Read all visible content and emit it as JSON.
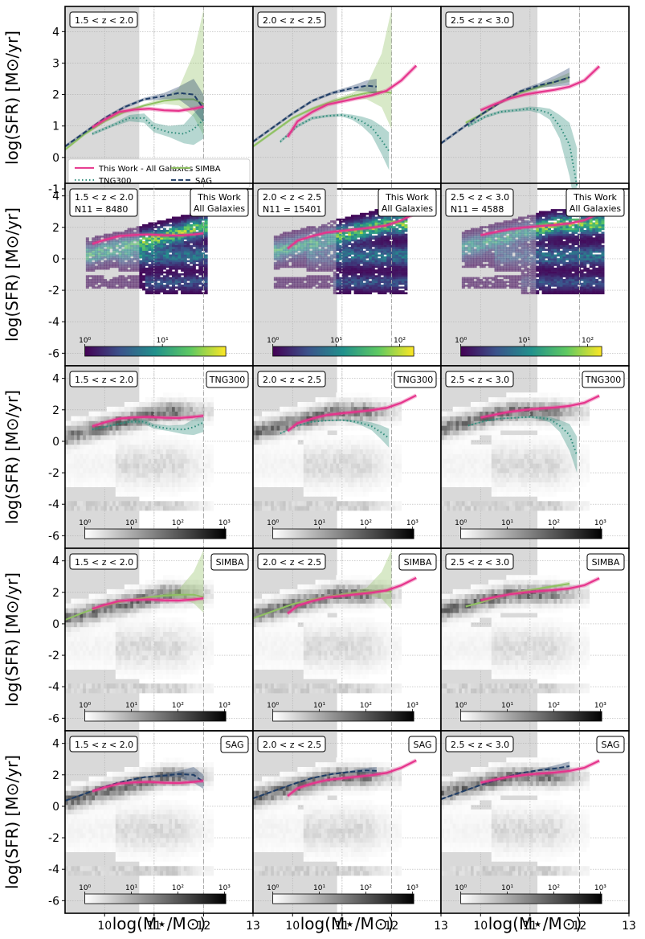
{
  "figure": {
    "ylabel": "log(SFR) [M⊙/yr]",
    "xlabel": "log(M⋆/M⊙)",
    "xticks": [
      10,
      11,
      12,
      13
    ],
    "yticks": [
      -6,
      -4,
      -2,
      0,
      2,
      4
    ],
    "y_row0_ticks": [
      -1,
      0,
      1,
      2,
      3,
      4
    ],
    "columns": [
      "1.5 < z < 2.0",
      "2.0 < z < 2.5",
      "2.5 < z < 3.0"
    ],
    "mass_limits": [
      10.7,
      10.9,
      11.15
    ],
    "dotted_ref": 11.0,
    "dashed_ref": 12.0,
    "row_tags": [
      "",
      "This Work\nAll Galaxies",
      "TNG300",
      "SIMBA",
      "SAG"
    ],
    "obs_counts": [
      "N11 = 8480",
      "N11 = 15401",
      "N11 = 4588"
    ],
    "obs_colorbar_ticks": [
      [
        "10⁰",
        "10¹"
      ],
      [
        "10⁰",
        "10¹",
        "10²"
      ],
      [
        "10⁰",
        "10¹",
        "10²"
      ]
    ],
    "sim_colorbar_ticks": [
      "10⁰",
      "10¹",
      "10²",
      "10³"
    ],
    "legend": [
      {
        "label": "This Work - All Galaxies",
        "color": "#e6348c",
        "style": "solid"
      },
      {
        "label": "SIMBA",
        "color": "#8fc162",
        "style": "solid"
      },
      {
        "label": "TNG300",
        "color": "#2e8b7a",
        "style": "dotted"
      },
      {
        "label": "SAG",
        "color": "#1f3d66",
        "style": "dashed"
      }
    ],
    "colors": {
      "this_work": "#e6348c",
      "tng": "#2e8b7a",
      "simba": "#8fc162",
      "sag": "#1f3d66",
      "shade": "#d9d9d9"
    }
  },
  "chart_data": {
    "type": "line",
    "xlim": [
      9.2,
      13.0
    ],
    "ylim_top": [
      -1,
      4.8
    ],
    "ylim": [
      -6.8,
      4.8
    ],
    "panels": [
      {
        "title": "1.5 < z < 2.0",
        "this_work": {
          "x": [
            9.75,
            10.0,
            10.3,
            10.6,
            10.9,
            11.2,
            11.5,
            11.8,
            12.0
          ],
          "y": [
            0.95,
            1.2,
            1.45,
            1.52,
            1.55,
            1.5,
            1.48,
            1.55,
            1.62
          ]
        },
        "tng": {
          "x": [
            9.75,
            10.2,
            10.5,
            10.8,
            11.0,
            11.3,
            11.6,
            11.8,
            12.0
          ],
          "y": [
            0.75,
            1.05,
            1.25,
            1.25,
            0.95,
            0.8,
            0.75,
            0.9,
            1.2
          ],
          "lo": [
            0.7,
            1.0,
            1.15,
            1.1,
            0.8,
            0.65,
            0.45,
            0.4,
            0.6
          ],
          "hi": [
            0.8,
            1.1,
            1.35,
            1.4,
            1.1,
            1.0,
            1.05,
            1.4,
            1.7
          ]
        },
        "simba": {
          "x": [
            9.2,
            9.6,
            10.0,
            10.4,
            10.8,
            11.2,
            11.5,
            11.8,
            12.0
          ],
          "y": [
            0.25,
            0.75,
            1.15,
            1.45,
            1.65,
            1.8,
            1.85,
            1.85,
            1.7
          ],
          "lo": [
            0.2,
            0.7,
            1.1,
            1.4,
            1.6,
            1.7,
            1.65,
            1.3,
            0.7
          ],
          "hi": [
            0.3,
            0.8,
            1.2,
            1.5,
            1.7,
            1.9,
            2.2,
            3.3,
            4.7
          ]
        },
        "sag": {
          "x": [
            9.2,
            9.6,
            10.0,
            10.4,
            10.8,
            11.2,
            11.5,
            11.8,
            12.0
          ],
          "y": [
            0.35,
            0.8,
            1.25,
            1.6,
            1.85,
            1.95,
            2.05,
            2.0,
            1.55
          ],
          "lo": [
            0.3,
            0.75,
            1.2,
            1.55,
            1.8,
            1.85,
            1.85,
            1.5,
            1.1
          ],
          "hi": [
            0.4,
            0.85,
            1.3,
            1.65,
            1.9,
            2.05,
            2.25,
            2.5,
            2.0
          ]
        }
      },
      {
        "title": "2.0 < z < 2.5",
        "this_work": {
          "x": [
            9.9,
            10.1,
            10.4,
            10.7,
            11.0,
            11.3,
            11.6,
            11.9,
            12.2,
            12.5
          ],
          "y": [
            0.65,
            1.15,
            1.45,
            1.68,
            1.78,
            1.88,
            1.98,
            2.12,
            2.45,
            2.92
          ]
        },
        "tng": {
          "x": [
            9.75,
            10.1,
            10.4,
            10.7,
            11.0,
            11.2,
            11.4,
            11.6,
            11.8,
            11.95
          ],
          "y": [
            0.5,
            1.0,
            1.25,
            1.32,
            1.35,
            1.28,
            1.15,
            0.95,
            0.55,
            0.2
          ],
          "lo": [
            0.45,
            0.95,
            1.2,
            1.28,
            1.3,
            1.2,
            1.0,
            0.7,
            0.1,
            -0.4
          ],
          "hi": [
            0.55,
            1.05,
            1.3,
            1.36,
            1.4,
            1.36,
            1.3,
            1.2,
            1.0,
            0.8
          ]
        },
        "simba": {
          "x": [
            9.2,
            9.6,
            10.0,
            10.4,
            10.8,
            11.2,
            11.5,
            11.8,
            12.0
          ],
          "y": [
            0.35,
            0.8,
            1.25,
            1.55,
            1.78,
            1.95,
            2.05,
            2.1,
            2.05
          ],
          "lo": [
            0.3,
            0.75,
            1.2,
            1.5,
            1.72,
            1.85,
            1.85,
            1.6,
            0.9
          ],
          "hi": [
            0.4,
            0.85,
            1.3,
            1.6,
            1.84,
            2.05,
            2.3,
            3.3,
            4.7
          ]
        },
        "sag": {
          "x": [
            9.2,
            9.6,
            10.0,
            10.4,
            10.8,
            11.2,
            11.5,
            11.7
          ],
          "y": [
            0.5,
            0.95,
            1.4,
            1.8,
            2.05,
            2.2,
            2.28,
            2.25
          ],
          "lo": [
            0.45,
            0.9,
            1.35,
            1.75,
            2.0,
            2.12,
            2.1,
            2.0
          ],
          "hi": [
            0.55,
            1.0,
            1.45,
            1.85,
            2.1,
            2.28,
            2.45,
            2.5
          ]
        }
      },
      {
        "title": "2.5 < z < 3.0",
        "this_work": {
          "x": [
            10.0,
            10.3,
            10.6,
            10.9,
            11.2,
            11.5,
            11.8,
            12.1,
            12.4
          ],
          "y": [
            1.5,
            1.7,
            1.88,
            2.0,
            2.08,
            2.15,
            2.25,
            2.45,
            2.9
          ]
        },
        "tng": {
          "x": [
            9.75,
            10.1,
            10.4,
            10.7,
            11.0,
            11.2,
            11.4,
            11.6,
            11.8,
            11.95
          ],
          "y": [
            1.0,
            1.3,
            1.45,
            1.5,
            1.55,
            1.5,
            1.4,
            1.0,
            0.4,
            -0.9
          ],
          "lo": [
            0.95,
            1.25,
            1.4,
            1.45,
            1.48,
            1.4,
            1.2,
            0.6,
            -0.6,
            -2.0
          ],
          "hi": [
            1.05,
            1.35,
            1.5,
            1.55,
            1.62,
            1.6,
            1.55,
            1.35,
            1.1,
            0.3
          ]
        },
        "simba": {
          "x": [
            9.7,
            10.0,
            10.4,
            10.8,
            11.2,
            11.5,
            11.8
          ],
          "y": [
            1.1,
            1.35,
            1.75,
            2.05,
            2.25,
            2.4,
            2.55
          ],
          "lo": [
            1.05,
            1.3,
            1.7,
            2.0,
            2.18,
            2.3,
            2.4
          ],
          "hi": [
            1.15,
            1.4,
            1.8,
            2.1,
            2.32,
            2.5,
            2.7
          ]
        },
        "sag": {
          "x": [
            9.2,
            9.6,
            10.0,
            10.4,
            10.8,
            11.2,
            11.5,
            11.8
          ],
          "y": [
            0.45,
            0.9,
            1.35,
            1.75,
            2.1,
            2.3,
            2.4,
            2.55
          ],
          "lo": [
            0.4,
            0.85,
            1.3,
            1.7,
            2.05,
            2.22,
            2.25,
            2.3
          ],
          "hi": [
            0.5,
            0.95,
            1.4,
            1.8,
            2.15,
            2.38,
            2.6,
            2.85
          ]
        }
      }
    ]
  }
}
